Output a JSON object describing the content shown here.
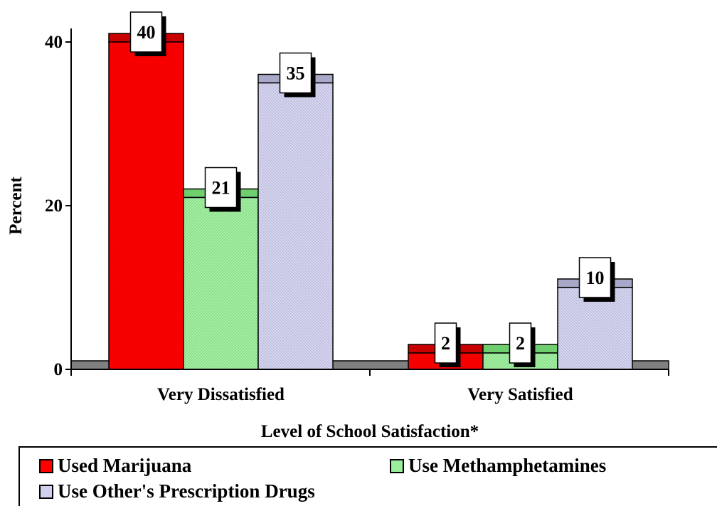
{
  "chart_data": {
    "type": "bar",
    "title": "",
    "xlabel": "Level of School Satisfaction*",
    "ylabel": "Percent",
    "ylim": [
      0,
      45
    ],
    "yticks": [
      0,
      20,
      40
    ],
    "categories": [
      "Very Dissatisfied",
      "Very Satisfied"
    ],
    "grid": false,
    "legend_position": "bottom",
    "series": [
      {
        "name": "Used Marijuana",
        "values": [
          40,
          2
        ],
        "labels": [
          "40",
          "2"
        ],
        "color": "#ff0000"
      },
      {
        "name": "Use Methamphetamines",
        "values": [
          21,
          2
        ],
        "labels": [
          "21",
          "2"
        ],
        "color": "#99ee99"
      },
      {
        "name": "Use Other's Prescription Drugs",
        "values": [
          35,
          10
        ],
        "labels": [
          "35",
          "10"
        ],
        "color": "#d0d0ee"
      }
    ]
  }
}
